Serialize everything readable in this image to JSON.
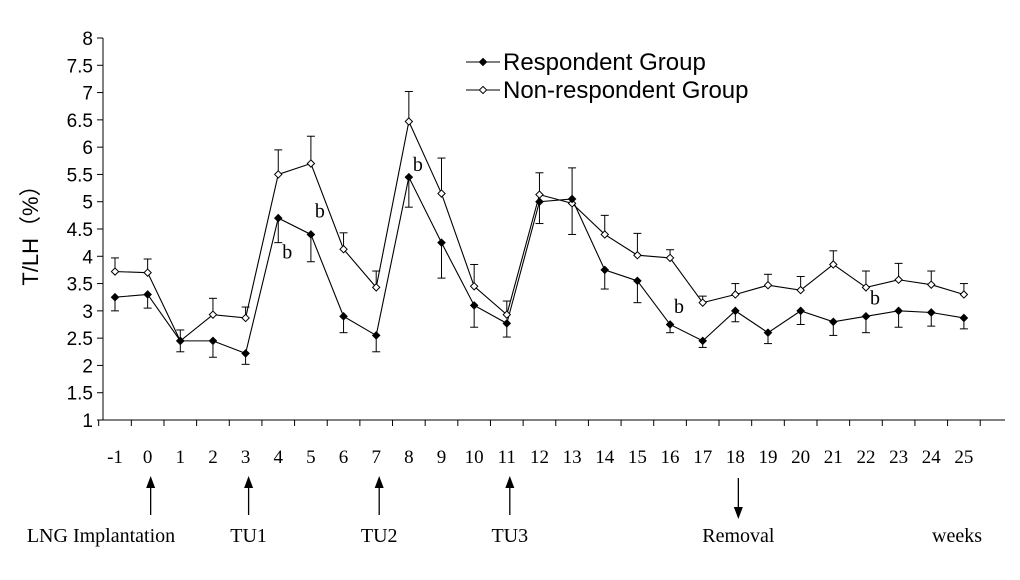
{
  "chart_data": {
    "type": "line",
    "title": "",
    "xlabel": "",
    "ylabel": "T/LH（%）",
    "ylim": [
      1,
      8
    ],
    "yticks": [
      "1",
      "1.5",
      "2",
      "2.5",
      "3",
      "3.5",
      "4",
      "4.5",
      "5",
      "5.5",
      "6",
      "6.5",
      "7",
      "7.5",
      "8"
    ],
    "x": [
      -1,
      0,
      1,
      2,
      3,
      4,
      5,
      6,
      7,
      8,
      9,
      10,
      11,
      12,
      13,
      14,
      15,
      16,
      17,
      18,
      19,
      20,
      21,
      22,
      23,
      24,
      25
    ],
    "xtick_labels": [
      "-1",
      "0",
      "1",
      "2",
      "3",
      "4",
      "5",
      "6",
      "7",
      "8",
      "9",
      "10",
      "11",
      "12",
      "13",
      "14",
      "15",
      "16",
      "17",
      "18",
      "19",
      "20",
      "21",
      "22",
      "23",
      "24",
      "25"
    ],
    "grid": false,
    "legend_position": "top-right",
    "series": [
      {
        "name": "Respondent Group",
        "marker": "filled-diamond",
        "color": "#000000",
        "values": [
          3.25,
          3.3,
          2.45,
          2.45,
          2.22,
          4.7,
          4.4,
          2.9,
          2.55,
          5.45,
          4.25,
          3.1,
          2.77,
          5.0,
          5.05,
          3.75,
          3.55,
          2.75,
          2.45,
          3.0,
          2.6,
          3.0,
          2.8,
          2.9,
          3.0,
          2.97,
          2.87
        ],
        "errors": [
          0.25,
          0.25,
          0.2,
          0.3,
          0.2,
          0.45,
          0.5,
          0.3,
          0.3,
          0.55,
          0.65,
          0.4,
          0.25,
          0.4,
          0.65,
          0.35,
          0.4,
          0.15,
          0.12,
          0.2,
          0.2,
          0.25,
          0.25,
          0.3,
          0.3,
          0.25,
          0.2
        ]
      },
      {
        "name": "Non-respondent Group",
        "marker": "open-diamond",
        "color": "#000000",
        "values": [
          3.72,
          3.7,
          2.45,
          2.93,
          2.87,
          5.5,
          5.7,
          4.13,
          3.43,
          6.47,
          5.15,
          3.45,
          2.93,
          5.13,
          4.97,
          4.4,
          4.02,
          3.97,
          3.15,
          3.3,
          3.47,
          3.38,
          3.85,
          3.43,
          3.57,
          3.48,
          3.3
        ]
      }
    ],
    "annotations": [
      {
        "text": "b",
        "x": 4,
        "y": 4.0
      },
      {
        "text": "b",
        "x": 5,
        "y": 4.75
      },
      {
        "text": "b",
        "x": 8,
        "y": 5.6
      },
      {
        "text": "b",
        "x": 16,
        "y": 3.0
      },
      {
        "text": "b",
        "x": 22,
        "y": 3.15
      }
    ],
    "event_markers": [
      {
        "label": "LNG Implantation",
        "week": 0,
        "direction": "up"
      },
      {
        "label": "TU1",
        "week": 3,
        "direction": "up"
      },
      {
        "label": "TU2",
        "week": 7,
        "direction": "up"
      },
      {
        "label": "TU3",
        "week": 11,
        "direction": "up"
      },
      {
        "label": "Removal",
        "week": 18,
        "direction": "down"
      }
    ],
    "unit_label": "weeks"
  }
}
